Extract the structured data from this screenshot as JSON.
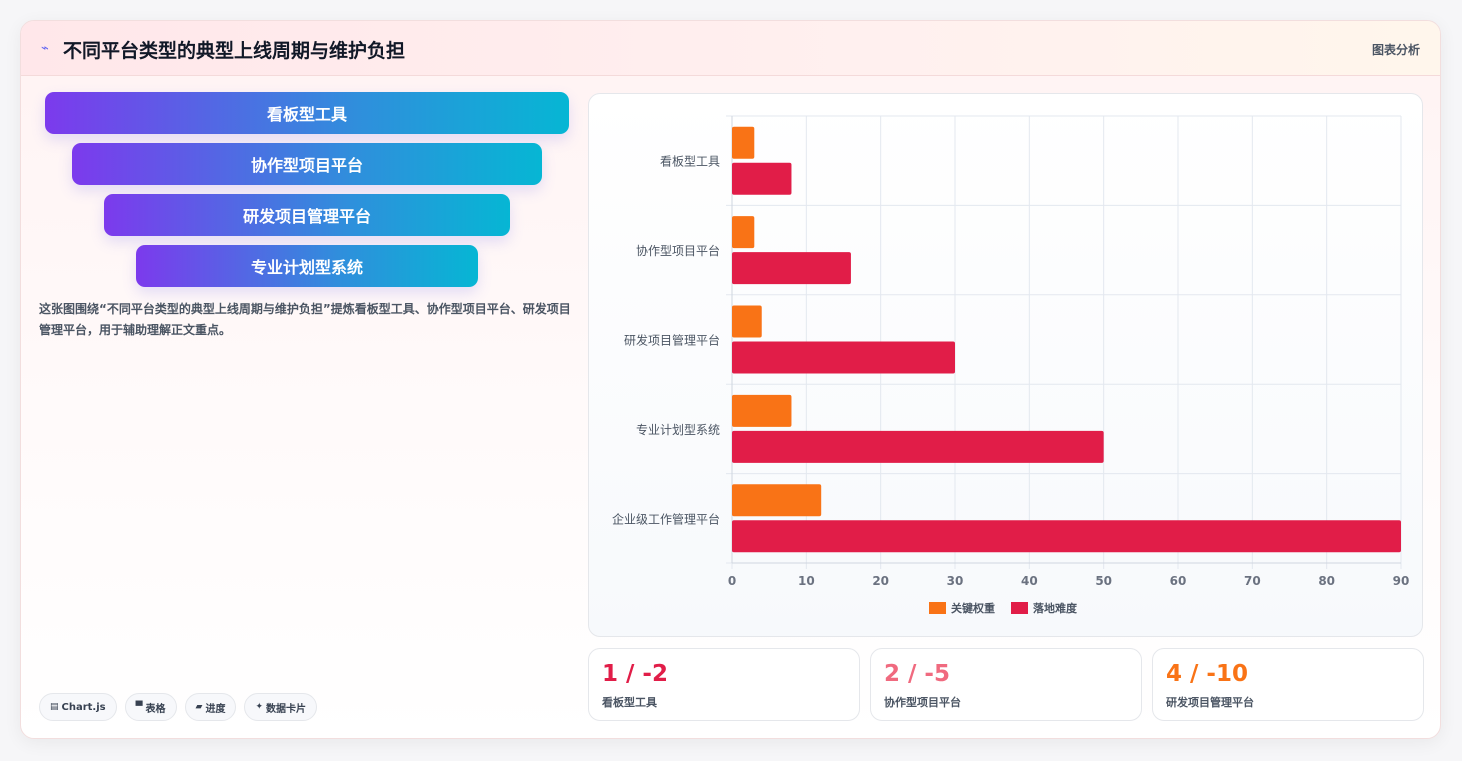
{
  "header": {
    "icon": "trend-icon",
    "title": "不同平台类型的典型上线周期与维护负担",
    "right_label": "图表分析"
  },
  "funnel": {
    "items": [
      {
        "label": "看板型工具"
      },
      {
        "label": "协作型项目平台"
      },
      {
        "label": "研发项目管理平台"
      },
      {
        "label": "专业计划型系统"
      }
    ]
  },
  "description": "这张图围绕“不同平台类型的典型上线周期与维护负担”提炼看板型工具、协作型项目平台、研发项目管理平台，用于辅助理解正文重点。",
  "tags": [
    {
      "icon": "chart-icon",
      "label": "Chart.js"
    },
    {
      "icon": "table-icon",
      "label": "表格"
    },
    {
      "icon": "progress-icon",
      "label": "进度"
    },
    {
      "icon": "sparkle-icon",
      "label": "数据卡片"
    }
  ],
  "chart_data": {
    "type": "bar",
    "orientation": "horizontal",
    "categories": [
      "看板型工具",
      "协作型项目平台",
      "研发项目管理平台",
      "专业计划型系统",
      "企业级工作管理平台"
    ],
    "series": [
      {
        "name": "关键权重",
        "color": "#f97316",
        "values": [
          3,
          3,
          4,
          8,
          12
        ]
      },
      {
        "name": "落地难度",
        "color": "#e11d48",
        "values": [
          8,
          16,
          30,
          50,
          90
        ]
      }
    ],
    "xlim": [
      0,
      90
    ],
    "xticks": [
      0,
      10,
      20,
      30,
      40,
      50,
      60,
      70,
      80,
      90
    ],
    "grid": true,
    "legend": "bottom"
  },
  "stats": [
    {
      "value": "1 / -2",
      "label": "看板型工具",
      "color": "#e11d48"
    },
    {
      "value": "2 / -5",
      "label": "协作型项目平台",
      "color": "#f06a7f"
    },
    {
      "value": "4 / -10",
      "label": "研发项目管理平台",
      "color": "#f97316"
    }
  ]
}
